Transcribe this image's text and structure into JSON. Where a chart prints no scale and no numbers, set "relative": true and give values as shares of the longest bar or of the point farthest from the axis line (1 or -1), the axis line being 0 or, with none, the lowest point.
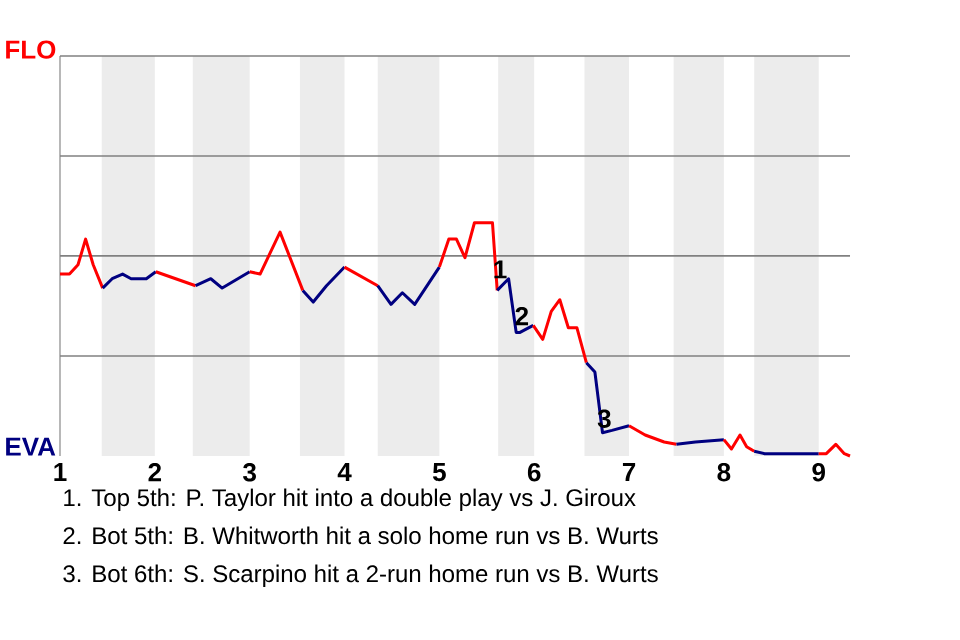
{
  "chart_data": {
    "type": "line",
    "relative": true,
    "xlim": [
      1,
      9.33
    ],
    "xticks": [
      1,
      2,
      3,
      4,
      5,
      6,
      7,
      8,
      9
    ],
    "marker": "none",
    "line_style": "solid",
    "series": [
      {
        "color": "#ff0000",
        "x": [
          1,
          1.1,
          1.19,
          1.27,
          1.35,
          1.45
        ],
        "values": [
          0.78,
          0.78,
          0.82,
          0.93,
          0.82,
          0.72
        ]
      },
      {
        "color": "#000080",
        "x": [
          1.45,
          1.55,
          1.66,
          1.75,
          1.91,
          2.01
        ],
        "values": [
          0.72,
          0.76,
          0.78,
          0.76,
          0.76,
          0.79
        ]
      },
      {
        "color": "#ff0000",
        "x": [
          2.01,
          2.43
        ],
        "values": [
          0.79,
          0.73
        ]
      },
      {
        "color": "#000080",
        "x": [
          2.43,
          2.59,
          2.71,
          3
        ],
        "values": [
          0.73,
          0.76,
          0.72,
          0.79
        ]
      },
      {
        "color": "#ff0000",
        "x": [
          3,
          3.11,
          3.32,
          3.56
        ],
        "values": [
          0.79,
          0.78,
          0.96,
          0.71
        ]
      },
      {
        "color": "#000080",
        "x": [
          3.56,
          3.67,
          3.81,
          4
        ],
        "values": [
          0.71,
          0.66,
          0.73,
          0.81
        ]
      },
      {
        "color": "#ff0000",
        "x": [
          4,
          4.35
        ],
        "values": [
          0.81,
          0.73
        ]
      },
      {
        "color": "#000080",
        "x": [
          4.35,
          4.49,
          4.61,
          4.74,
          5
        ],
        "values": [
          0.73,
          0.65,
          0.7,
          0.65,
          0.81
        ]
      },
      {
        "color": "#ff0000",
        "x": [
          5,
          5.1,
          5.18,
          5.27,
          5.37,
          5.56,
          5.61
        ],
        "values": [
          0.81,
          0.93,
          0.93,
          0.85,
          1,
          1,
          0.71
        ]
      },
      {
        "color": "#000080",
        "x": [
          5.61,
          5.73,
          5.81,
          5.85,
          5.99
        ],
        "values": [
          0.71,
          0.76,
          0.53,
          0.53,
          0.56
        ]
      },
      {
        "color": "#ff0000",
        "x": [
          5.99,
          6.09,
          6.18,
          6.27,
          6.36,
          6.45,
          6.55
        ],
        "values": [
          0.56,
          0.5,
          0.62,
          0.67,
          0.55,
          0.55,
          0.4
        ]
      },
      {
        "color": "#000080",
        "x": [
          6.55,
          6.64,
          6.72,
          6.82,
          7
        ],
        "values": [
          0.4,
          0.36,
          0.1,
          0.11,
          0.13
        ]
      },
      {
        "color": "#ff0000",
        "x": [
          7,
          7.17,
          7.37,
          7.5
        ],
        "values": [
          0.13,
          0.09,
          0.06,
          0.05
        ]
      },
      {
        "color": "#000080",
        "x": [
          7.5,
          7.7,
          8
        ],
        "values": [
          0.05,
          0.06,
          0.07
        ]
      },
      {
        "color": "#ff0000",
        "x": [
          8,
          8.08,
          8.17,
          8.24,
          8.32
        ],
        "values": [
          0.07,
          0.03,
          0.09,
          0.04,
          0.02
        ]
      },
      {
        "color": "#000080",
        "x": [
          8.32,
          8.43,
          8.58,
          9
        ],
        "values": [
          0.02,
          0.01,
          0.01,
          0.01
        ]
      },
      {
        "color": "#ff0000",
        "x": [
          9,
          9.08,
          9.18,
          9.27,
          9.33
        ],
        "values": [
          0.01,
          0.01,
          0.05,
          0.01,
          0
        ]
      }
    ],
    "ref_lines": [
      {
        "axis": "y",
        "value": 0.429,
        "color": "#808080"
      },
      {
        "axis": "y",
        "value": 0.858,
        "color": "#808080"
      },
      {
        "axis": "y",
        "value": 1.286,
        "color": "#808080"
      },
      {
        "axis": "y",
        "value": 1.715,
        "color": "#808080"
      }
    ],
    "bands": [
      {
        "axis": "x",
        "from": 1.44,
        "to": 2,
        "color": "#ececec"
      },
      {
        "axis": "x",
        "from": 2.4,
        "to": 3,
        "color": "#ececec"
      },
      {
        "axis": "x",
        "from": 3.53,
        "to": 4,
        "color": "#ececec"
      },
      {
        "axis": "x",
        "from": 4.35,
        "to": 5,
        "color": "#ececec"
      },
      {
        "axis": "x",
        "from": 5.62,
        "to": 6,
        "color": "#ececec"
      },
      {
        "axis": "x",
        "from": 6.53,
        "to": 7,
        "color": "#ececec"
      },
      {
        "axis": "x",
        "from": 7.47,
        "to": 8,
        "color": "#ececec"
      },
      {
        "axis": "x",
        "from": 8.32,
        "to": 9,
        "color": "#ececec"
      }
    ],
    "annotations": [
      "FLO",
      "EVA",
      {
        "text": "1",
        "x": 5.64,
        "y": 0.8
      },
      {
        "text": "2",
        "x": 5.87,
        "y": 0.6
      },
      {
        "text": "3",
        "x": 6.74,
        "y": 0.16
      },
      "1. Top 5th: P. Taylor hit into a double play vs J. Giroux",
      "2. Bot 5th: B. Whitworth hit a solo home run vs B. Wurts",
      "3. Bot 6th: S. Scarpino hit a 2-run home run vs B. Wurts"
    ]
  }
}
